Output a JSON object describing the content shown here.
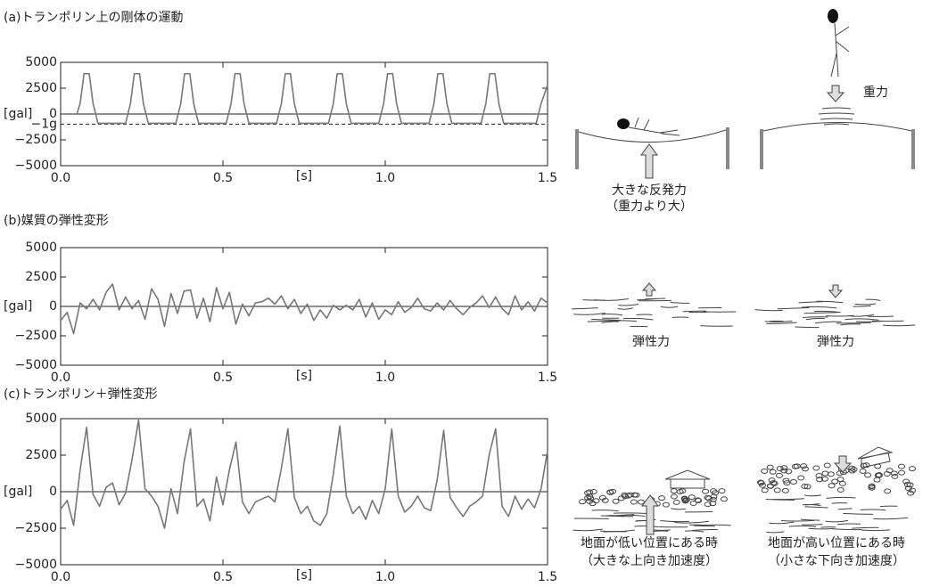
{
  "chart_data": [
    {
      "type": "line",
      "title": "(a)トランポリン上の剛体の運動",
      "y_label": "[gal]",
      "x_label": "[s]",
      "color": "#777777",
      "xlim": [
        0,
        1.5
      ],
      "ylim": [
        -5000,
        5000
      ],
      "xticks": [
        {
          "value": 0,
          "label": "0.0"
        },
        0.5,
        {
          "value": 1,
          "label": "1.0"
        },
        1.5
      ],
      "yticks": [
        5000,
        2500,
        0,
        {
          "value": -2500,
          "label": "−2500"
        },
        {
          "value": -5000,
          "label": "−5000"
        }
      ],
      "ref_line": {
        "value": -980,
        "label": "−1g"
      },
      "x": [
        0.05,
        0.06,
        0.072,
        0.088,
        0.1,
        0.115,
        0.2,
        0.215,
        0.227,
        0.243,
        0.255,
        0.27,
        0.355,
        0.37,
        0.382,
        0.398,
        0.41,
        0.425,
        0.51,
        0.525,
        0.537,
        0.553,
        0.565,
        0.58,
        0.665,
        0.68,
        0.692,
        0.708,
        0.72,
        0.735,
        0.825,
        0.84,
        0.852,
        0.868,
        0.88,
        0.895,
        0.98,
        0.995,
        1.007,
        1.023,
        1.035,
        1.05,
        1.135,
        1.15,
        1.162,
        1.178,
        1.19,
        1.205,
        1.295,
        1.31,
        1.322,
        1.338,
        1.35,
        1.365,
        1.465,
        1.48,
        1.5
      ],
      "values": [
        0,
        1000,
        3900,
        3900,
        1000,
        -900,
        -900,
        1000,
        3900,
        3900,
        1000,
        -900,
        -900,
        1000,
        3900,
        3900,
        1000,
        -900,
        -900,
        1000,
        3900,
        3900,
        1000,
        -900,
        -900,
        1000,
        3900,
        3900,
        1000,
        -900,
        -900,
        1000,
        3900,
        3900,
        1000,
        -900,
        -900,
        1000,
        3900,
        3900,
        1000,
        -900,
        -900,
        1000,
        3900,
        3900,
        1000,
        -900,
        -900,
        1000,
        3900,
        3900,
        1000,
        -900,
        -900,
        1000,
        2800
      ]
    },
    {
      "type": "line",
      "title": "(b)媒質の弾性変形",
      "y_label": "[gal]",
      "x_label": "[s]",
      "color": "#777777",
      "xlim": [
        0,
        1.5
      ],
      "ylim": [
        -5000,
        5000
      ],
      "xticks": [
        {
          "value": 0,
          "label": "0.0"
        },
        0.5,
        {
          "value": 1,
          "label": "1.0"
        },
        1.5
      ],
      "yticks": [
        5000,
        2500,
        0,
        {
          "value": -2500,
          "label": "−2500"
        },
        {
          "value": -5000,
          "label": "−5000"
        }
      ],
      "x": [
        0,
        0.02,
        0.04,
        0.06,
        0.08,
        0.1,
        0.12,
        0.14,
        0.16,
        0.18,
        0.2,
        0.22,
        0.24,
        0.26,
        0.28,
        0.3,
        0.32,
        0.34,
        0.36,
        0.38,
        0.4,
        0.42,
        0.44,
        0.46,
        0.48,
        0.5,
        0.52,
        0.54,
        0.56,
        0.58,
        0.6,
        0.62,
        0.64,
        0.66,
        0.68,
        0.7,
        0.72,
        0.74,
        0.76,
        0.78,
        0.8,
        0.82,
        0.84,
        0.86,
        0.88,
        0.9,
        0.92,
        0.94,
        0.96,
        0.98,
        1,
        1.02,
        1.04,
        1.06,
        1.08,
        1.1,
        1.12,
        1.14,
        1.16,
        1.18,
        1.2,
        1.22,
        1.24,
        1.26,
        1.28,
        1.3,
        1.32,
        1.34,
        1.36,
        1.38,
        1.4,
        1.42,
        1.44,
        1.46,
        1.48,
        1.5
      ],
      "values": [
        -1200,
        -500,
        -2300,
        300,
        -200,
        600,
        -300,
        1200,
        1900,
        -300,
        800,
        -200,
        500,
        -1100,
        1500,
        600,
        -1700,
        1100,
        -600,
        1300,
        1400,
        -1000,
        700,
        -1300,
        1600,
        -200,
        1200,
        -1500,
        200,
        -800,
        300,
        400,
        700,
        200,
        900,
        -200,
        600,
        -600,
        200,
        -1200,
        -300,
        -1000,
        100,
        -300,
        100,
        -300,
        600,
        -900,
        300,
        -1100,
        -300,
        -700,
        400,
        -500,
        -100,
        700,
        -200,
        -400,
        300,
        -300,
        500,
        -200,
        -700,
        -100,
        300,
        900,
        -100,
        800,
        -200,
        -700,
        900,
        -300,
        400,
        -400,
        700,
        300
      ]
    },
    {
      "type": "line",
      "title": "(c)トランポリン＋弾性変形",
      "y_label": "[gal]",
      "x_label": "[s]",
      "color": "#777777",
      "xlim": [
        0,
        1.5
      ],
      "ylim": [
        -5000,
        5000
      ],
      "xticks": [
        {
          "value": 0,
          "label": "0.0"
        },
        0.5,
        {
          "value": 1,
          "label": "1.0"
        },
        1.5
      ],
      "yticks": [
        5000,
        2500,
        0,
        {
          "value": -2500,
          "label": "−2500"
        },
        {
          "value": -5000,
          "label": "−5000"
        }
      ],
      "x": [
        0,
        0.02,
        0.04,
        0.06,
        0.08,
        0.1,
        0.12,
        0.14,
        0.16,
        0.18,
        0.2,
        0.22,
        0.24,
        0.26,
        0.28,
        0.3,
        0.32,
        0.34,
        0.36,
        0.38,
        0.4,
        0.42,
        0.44,
        0.46,
        0.48,
        0.5,
        0.52,
        0.54,
        0.56,
        0.58,
        0.6,
        0.62,
        0.64,
        0.66,
        0.68,
        0.7,
        0.72,
        0.74,
        0.76,
        0.78,
        0.8,
        0.82,
        0.84,
        0.86,
        0.88,
        0.9,
        0.92,
        0.94,
        0.96,
        0.98,
        1,
        1.02,
        1.04,
        1.06,
        1.08,
        1.1,
        1.12,
        1.14,
        1.16,
        1.18,
        1.2,
        1.22,
        1.24,
        1.26,
        1.28,
        1.3,
        1.32,
        1.34,
        1.36,
        1.38,
        1.4,
        1.42,
        1.44,
        1.46,
        1.48,
        1.5
      ],
      "values": [
        -1200,
        -600,
        -2300,
        1500,
        4400,
        -200,
        -1000,
        300,
        600,
        -900,
        -100,
        2200,
        4900,
        200,
        -300,
        -1000,
        -2500,
        200,
        -1500,
        2000,
        4300,
        -1000,
        -500,
        -2000,
        1000,
        -900,
        1500,
        3400,
        -700,
        -1500,
        -700,
        -500,
        -300,
        -700,
        1600,
        4300,
        -400,
        -1500,
        -1000,
        -2000,
        -2300,
        -1500,
        1200,
        4500,
        -300,
        -1500,
        -1000,
        -1900,
        -600,
        -1500,
        200,
        4300,
        -300,
        -1400,
        -1000,
        -300,
        -1100,
        -1300,
        800,
        4200,
        -400,
        -1100,
        -1700,
        -1000,
        -700,
        -300,
        2500,
        4300,
        -1000,
        -1700,
        -300,
        -1200,
        -500,
        -1100,
        200,
        2800
      ]
    }
  ],
  "illustrations": {
    "a": {
      "force": "重力",
      "rebound": "大きな反発力",
      "rebound_note": "（重力より大）"
    },
    "b": {
      "left": "弾性力",
      "right": "弾性力"
    },
    "c": {
      "left": "地面が低い位置にある時",
      "left_note": "（大きな上向き加速度）",
      "right": "地面が高い位置にある時",
      "right_note": "（小さな下向き加速度）"
    }
  }
}
